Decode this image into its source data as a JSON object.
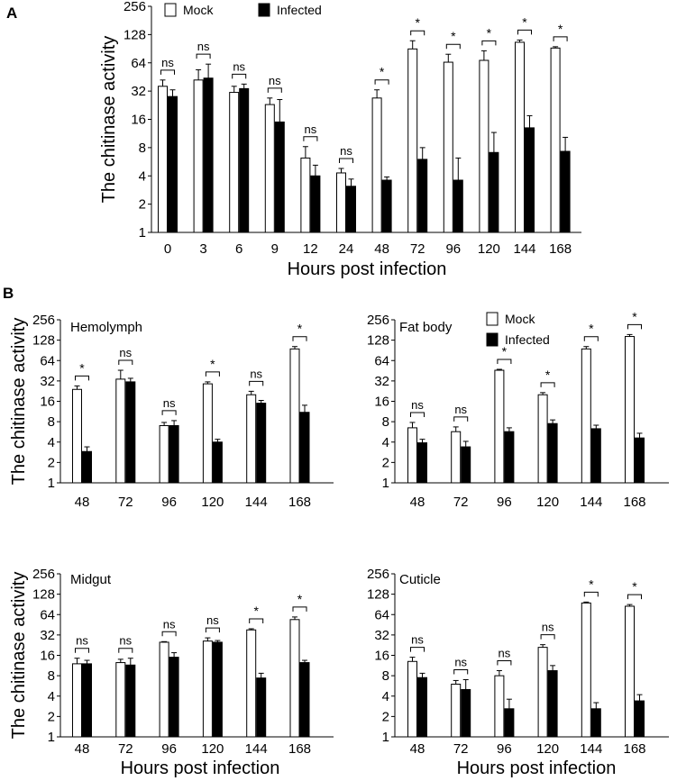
{
  "panel_labels": [
    "A",
    "B"
  ],
  "legend": {
    "mock": "Mock",
    "infected": "Infected"
  },
  "colors": {
    "mock": "#ffffff",
    "infected": "#000000",
    "axis": "#000000"
  },
  "chart_data": [
    {
      "id": "A",
      "type": "bar",
      "title": "",
      "ylabel": "The chitinase activity",
      "xlabel": "Hours post infection",
      "yscale": "log2",
      "ylim": [
        1,
        256
      ],
      "yticks": [
        1,
        2,
        4,
        8,
        16,
        32,
        64,
        128,
        256
      ],
      "categories": [
        "0",
        "3",
        "6",
        "9",
        "12",
        "24",
        "48",
        "72",
        "96",
        "120",
        "144",
        "168"
      ],
      "legend_position": "top-left",
      "series": [
        {
          "name": "Mock",
          "values": [
            36,
            42,
            31,
            23,
            6.2,
            4.3,
            27,
            90,
            65,
            68,
            106,
            92
          ],
          "errors": [
            6,
            12,
            5,
            4,
            2,
            0.5,
            6,
            20,
            14,
            18,
            6,
            3
          ]
        },
        {
          "name": "Infected",
          "values": [
            28,
            44,
            34,
            15,
            4,
            3.1,
            3.6,
            6,
            3.6,
            7.1,
            13,
            7.3
          ],
          "errors": [
            5,
            18,
            4,
            11,
            1.2,
            0.6,
            0.3,
            2,
            2.6,
            4.5,
            4.5,
            3
          ]
        }
      ],
      "significance": [
        "ns",
        "ns",
        "ns",
        "ns",
        "ns",
        "ns",
        "*",
        "*",
        "*",
        "*",
        "*",
        "*"
      ]
    },
    {
      "id": "B-hemolymph",
      "type": "bar",
      "title": "Hemolymph",
      "ylabel": "The chitinase activity",
      "xlabel": "",
      "yscale": "log2",
      "ylim": [
        1,
        256
      ],
      "yticks": [
        1,
        2,
        4,
        8,
        16,
        32,
        64,
        128,
        256
      ],
      "categories": [
        "48",
        "72",
        "96",
        "120",
        "144",
        "168"
      ],
      "series": [
        {
          "name": "Mock",
          "values": [
            24,
            34,
            7,
            29,
            20,
            95
          ],
          "errors": [
            3,
            12,
            0.8,
            2,
            2.5,
            8
          ]
        },
        {
          "name": "Infected",
          "values": [
            2.9,
            31,
            7,
            4,
            15,
            11
          ],
          "errors": [
            0.5,
            4,
            1.3,
            0.4,
            1.5,
            3
          ]
        }
      ],
      "significance": [
        "*",
        "ns",
        "ns",
        "*",
        "ns",
        "*"
      ]
    },
    {
      "id": "B-fat-body",
      "type": "bar",
      "title": "Fat body",
      "ylabel": "",
      "xlabel": "",
      "yscale": "log2",
      "ylim": [
        1,
        256
      ],
      "yticks": [
        1,
        2,
        4,
        8,
        16,
        32,
        64,
        128,
        256
      ],
      "categories": [
        "48",
        "72",
        "96",
        "120",
        "144",
        "168"
      ],
      "legend_position": "top-right",
      "series": [
        {
          "name": "Mock",
          "values": [
            6.5,
            5.7,
            46,
            20,
            95,
            145
          ],
          "errors": [
            1.3,
            1,
            1.5,
            1.5,
            8,
            10
          ]
        },
        {
          "name": "Infected",
          "values": [
            3.9,
            3.4,
            5.7,
            7.5,
            6.3,
            4.6
          ],
          "errors": [
            0.5,
            0.7,
            0.8,
            1,
            0.8,
            0.8
          ]
        }
      ],
      "significance": [
        "ns",
        "ns",
        "*",
        "*",
        "*",
        "*"
      ]
    },
    {
      "id": "B-midgut",
      "type": "bar",
      "title": "Midgut",
      "ylabel": "The chitinase activity",
      "xlabel": "Hours post infection",
      "yscale": "log2",
      "ylim": [
        1,
        256
      ],
      "yticks": [
        1,
        2,
        4,
        8,
        16,
        32,
        64,
        128,
        256
      ],
      "categories": [
        "48",
        "72",
        "96",
        "120",
        "144",
        "168"
      ],
      "series": [
        {
          "name": "Mock",
          "values": [
            12,
            12.5,
            25,
            26,
            38,
            54
          ],
          "errors": [
            2.5,
            1.5,
            0.5,
            3,
            1.5,
            5
          ]
        },
        {
          "name": "Infected",
          "values": [
            12,
            11.5,
            15,
            25,
            7.4,
            12.5
          ],
          "errors": [
            1.5,
            3,
            2.5,
            1.5,
            1.3,
            1
          ]
        }
      ],
      "significance": [
        "ns",
        "ns",
        "ns",
        "ns",
        "*",
        "*"
      ]
    },
    {
      "id": "B-cuticle",
      "type": "bar",
      "title": "Cuticle",
      "ylabel": "",
      "xlabel": "Hours post infection",
      "yscale": "log2",
      "ylim": [
        1,
        256
      ],
      "yticks": [
        1,
        2,
        4,
        8,
        16,
        32,
        64,
        128,
        256
      ],
      "categories": [
        "48",
        "72",
        "96",
        "120",
        "144",
        "168"
      ],
      "series": [
        {
          "name": "Mock",
          "values": [
            13,
            6,
            8,
            21,
            95,
            85
          ],
          "errors": [
            2,
            0.8,
            1.5,
            2,
            3,
            5
          ]
        },
        {
          "name": "Infected",
          "values": [
            7.5,
            5,
            2.6,
            9.5,
            2.6,
            3.4
          ],
          "errors": [
            1.2,
            2,
            1,
            1.8,
            0.6,
            0.8
          ]
        }
      ],
      "significance": [
        "ns",
        "ns",
        "ns",
        "ns",
        "*",
        "*"
      ]
    }
  ]
}
